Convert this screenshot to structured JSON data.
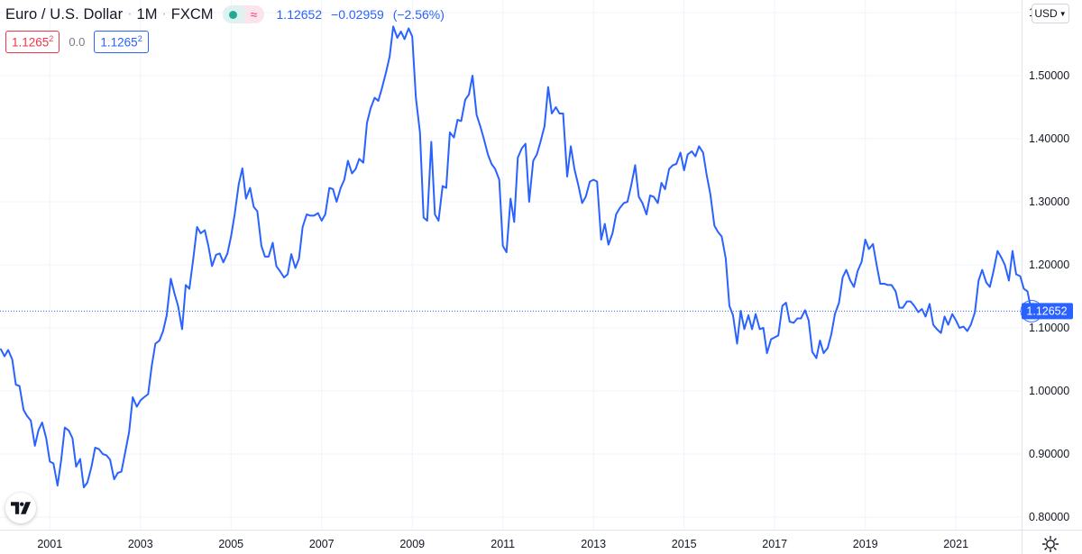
{
  "header": {
    "symbol": "Euro / U.S. Dollar",
    "separator": "·",
    "timeframe": "1M",
    "exchange": "FXCM",
    "status_icons": [
      "market-open-dot-icon",
      "data-wave-icon"
    ],
    "last": "1.12652",
    "change": "−0.02959",
    "change_pct": "(−2.56%)"
  },
  "legend": {
    "price_left": "1.1265",
    "price_left_sup": "2",
    "zero": "0.0",
    "price_right": "1.1265",
    "price_right_sup": "2"
  },
  "currency": {
    "label": "USD"
  },
  "last_price_label": "1.12652",
  "colors": {
    "line": "#2962ff",
    "down": "#f23645",
    "grid": "#f0f3fa",
    "text": "#131722"
  },
  "icons": {
    "logo": "tradingview-logo-icon",
    "settings": "gear-icon"
  },
  "chart_data": {
    "type": "line",
    "title": "Euro / U.S. Dollar",
    "xlabel": "",
    "ylabel": "",
    "x_ticks": [
      "2001",
      "2003",
      "2005",
      "2007",
      "2009",
      "2011",
      "2013",
      "2015",
      "2017",
      "2019",
      "2021"
    ],
    "y_ticks": [
      "0.80000",
      "0.90000",
      "1.00000",
      "1.10000",
      "1.20000",
      "1.30000",
      "1.40000",
      "1.50000",
      "1.60000"
    ],
    "xlim": [
      1999.9,
      2022.45
    ],
    "ylim": [
      0.78,
      1.62
    ],
    "last_value": 1.12652,
    "grid": true,
    "series": [
      {
        "points": [
          [
            1999.92,
            1.066
          ],
          [
            2000.0,
            1.055
          ],
          [
            2000.08,
            1.065
          ],
          [
            2000.17,
            1.05
          ],
          [
            2000.25,
            1.01
          ],
          [
            2000.33,
            1.008
          ],
          [
            2000.42,
            0.97
          ],
          [
            2000.5,
            0.96
          ],
          [
            2000.58,
            0.953
          ],
          [
            2000.67,
            0.913
          ],
          [
            2000.75,
            0.938
          ],
          [
            2000.83,
            0.95
          ],
          [
            2000.92,
            0.925
          ],
          [
            2001.0,
            0.888
          ],
          [
            2001.08,
            0.885
          ],
          [
            2001.17,
            0.85
          ],
          [
            2001.25,
            0.89
          ],
          [
            2001.33,
            0.942
          ],
          [
            2001.42,
            0.937
          ],
          [
            2001.5,
            0.925
          ],
          [
            2001.58,
            0.88
          ],
          [
            2001.67,
            0.892
          ],
          [
            2001.75,
            0.847
          ],
          [
            2001.83,
            0.855
          ],
          [
            2001.92,
            0.88
          ],
          [
            2002.0,
            0.91
          ],
          [
            2002.08,
            0.908
          ],
          [
            2002.17,
            0.9
          ],
          [
            2002.25,
            0.898
          ],
          [
            2002.33,
            0.891
          ],
          [
            2002.42,
            0.86
          ],
          [
            2002.5,
            0.87
          ],
          [
            2002.58,
            0.872
          ],
          [
            2002.67,
            0.905
          ],
          [
            2002.75,
            0.935
          ],
          [
            2002.83,
            0.99
          ],
          [
            2002.92,
            0.975
          ],
          [
            2003.0,
            0.985
          ],
          [
            2003.08,
            0.99
          ],
          [
            2003.17,
            0.995
          ],
          [
            2003.25,
            1.04
          ],
          [
            2003.33,
            1.075
          ],
          [
            2003.42,
            1.08
          ],
          [
            2003.5,
            1.095
          ],
          [
            2003.58,
            1.12
          ],
          [
            2003.67,
            1.178
          ],
          [
            2003.75,
            1.155
          ],
          [
            2003.83,
            1.135
          ],
          [
            2003.92,
            1.098
          ],
          [
            2004.0,
            1.168
          ],
          [
            2004.08,
            1.162
          ],
          [
            2004.17,
            1.212
          ],
          [
            2004.25,
            1.26
          ],
          [
            2004.33,
            1.25
          ],
          [
            2004.42,
            1.255
          ],
          [
            2004.5,
            1.23
          ],
          [
            2004.58,
            1.198
          ],
          [
            2004.67,
            1.216
          ],
          [
            2004.75,
            1.218
          ],
          [
            2004.83,
            1.204
          ],
          [
            2004.92,
            1.218
          ],
          [
            2005.0,
            1.245
          ],
          [
            2005.08,
            1.28
          ],
          [
            2005.17,
            1.328
          ],
          [
            2005.25,
            1.353
          ],
          [
            2005.33,
            1.305
          ],
          [
            2005.42,
            1.322
          ],
          [
            2005.5,
            1.292
          ],
          [
            2005.58,
            1.285
          ],
          [
            2005.67,
            1.23
          ],
          [
            2005.75,
            1.213
          ],
          [
            2005.83,
            1.213
          ],
          [
            2005.92,
            1.235
          ],
          [
            2006.0,
            1.198
          ],
          [
            2006.08,
            1.19
          ],
          [
            2006.17,
            1.18
          ],
          [
            2006.25,
            1.185
          ],
          [
            2006.33,
            1.217
          ],
          [
            2006.42,
            1.195
          ],
          [
            2006.5,
            1.21
          ],
          [
            2006.58,
            1.26
          ],
          [
            2006.67,
            1.28
          ],
          [
            2006.75,
            1.278
          ],
          [
            2006.83,
            1.278
          ],
          [
            2006.92,
            1.282
          ],
          [
            2007.0,
            1.27
          ],
          [
            2007.08,
            1.28
          ],
          [
            2007.17,
            1.322
          ],
          [
            2007.25,
            1.32
          ],
          [
            2007.33,
            1.3
          ],
          [
            2007.42,
            1.322
          ],
          [
            2007.5,
            1.335
          ],
          [
            2007.58,
            1.365
          ],
          [
            2007.67,
            1.345
          ],
          [
            2007.75,
            1.352
          ],
          [
            2007.83,
            1.368
          ],
          [
            2007.92,
            1.362
          ],
          [
            2008.0,
            1.425
          ],
          [
            2008.08,
            1.448
          ],
          [
            2008.17,
            1.465
          ],
          [
            2008.25,
            1.46
          ],
          [
            2008.33,
            1.48
          ],
          [
            2008.42,
            1.505
          ],
          [
            2008.5,
            1.53
          ],
          [
            2008.58,
            1.578
          ],
          [
            2008.67,
            1.56
          ],
          [
            2008.75,
            1.57
          ],
          [
            2008.83,
            1.558
          ],
          [
            2008.92,
            1.575
          ],
          [
            2009.0,
            1.562
          ],
          [
            2009.08,
            1.465
          ],
          [
            2009.17,
            1.41
          ],
          [
            2009.25,
            1.275
          ],
          [
            2009.33,
            1.27
          ],
          [
            2009.42,
            1.395
          ],
          [
            2009.5,
            1.28
          ],
          [
            2009.58,
            1.27
          ],
          [
            2009.67,
            1.325
          ],
          [
            2009.75,
            1.322
          ],
          [
            2009.83,
            1.41
          ],
          [
            2009.92,
            1.402
          ],
          [
            2010.0,
            1.43
          ],
          [
            2010.08,
            1.428
          ],
          [
            2010.17,
            1.462
          ],
          [
            2010.25,
            1.47
          ],
          [
            2010.33,
            1.5
          ],
          [
            2010.42,
            1.438
          ],
          [
            2010.5,
            1.42
          ],
          [
            2010.58,
            1.4
          ],
          [
            2010.67,
            1.375
          ],
          [
            2010.75,
            1.36
          ],
          [
            2010.83,
            1.352
          ],
          [
            2010.92,
            1.335
          ],
          [
            2011.0,
            1.23
          ],
          [
            2011.08,
            1.22
          ],
          [
            2011.17,
            1.305
          ],
          [
            2011.25,
            1.268
          ],
          [
            2011.33,
            1.37
          ],
          [
            2011.42,
            1.385
          ],
          [
            2011.5,
            1.392
          ],
          [
            2011.58,
            1.3
          ],
          [
            2011.67,
            1.365
          ],
          [
            2011.75,
            1.375
          ],
          [
            2011.83,
            1.395
          ],
          [
            2011.92,
            1.42
          ],
          [
            2012.0,
            1.482
          ],
          [
            2012.08,
            1.44
          ],
          [
            2012.17,
            1.45
          ],
          [
            2012.25,
            1.44
          ],
          [
            2012.33,
            1.44
          ],
          [
            2012.42,
            1.34
          ],
          [
            2012.5,
            1.388
          ],
          [
            2012.58,
            1.352
          ],
          [
            2012.67,
            1.325
          ],
          [
            2012.75,
            1.298
          ],
          [
            2012.83,
            1.308
          ],
          [
            2012.92,
            1.332
          ],
          [
            2013.0,
            1.335
          ],
          [
            2013.08,
            1.332
          ],
          [
            2013.17,
            1.24
          ],
          [
            2013.25,
            1.265
          ],
          [
            2013.33,
            1.232
          ],
          [
            2013.42,
            1.25
          ],
          [
            2013.5,
            1.28
          ],
          [
            2013.58,
            1.29
          ],
          [
            2013.67,
            1.298
          ],
          [
            2013.75,
            1.3
          ],
          [
            2013.83,
            1.325
          ],
          [
            2013.92,
            1.358
          ],
          [
            2014.0,
            1.308
          ],
          [
            2014.08,
            1.298
          ],
          [
            2014.17,
            1.28
          ],
          [
            2014.25,
            1.31
          ],
          [
            2014.33,
            1.308
          ],
          [
            2014.42,
            1.298
          ],
          [
            2014.5,
            1.33
          ],
          [
            2014.58,
            1.32
          ],
          [
            2014.67,
            1.352
          ],
          [
            2014.75,
            1.358
          ],
          [
            2014.83,
            1.36
          ],
          [
            2014.92,
            1.378
          ],
          [
            2015.0,
            1.35
          ],
          [
            2015.08,
            1.375
          ],
          [
            2015.17,
            1.38
          ],
          [
            2015.25,
            1.372
          ],
          [
            2015.33,
            1.388
          ],
          [
            2015.42,
            1.378
          ],
          [
            2015.5,
            1.342
          ],
          [
            2015.58,
            1.312
          ],
          [
            2015.67,
            1.262
          ],
          [
            2015.75,
            1.252
          ],
          [
            2015.83,
            1.245
          ],
          [
            2015.92,
            1.21
          ],
          [
            2016.0,
            1.135
          ],
          [
            2016.08,
            1.12
          ],
          [
            2016.17,
            1.075
          ],
          [
            2016.25,
            1.127
          ],
          [
            2016.33,
            1.098
          ],
          [
            2016.42,
            1.12
          ],
          [
            2016.5,
            1.098
          ],
          [
            2016.58,
            1.122
          ],
          [
            2016.67,
            1.098
          ],
          [
            2016.75,
            1.1
          ],
          [
            2016.83,
            1.06
          ],
          [
            2016.92,
            1.082
          ],
          [
            2017.0,
            1.085
          ],
          [
            2017.08,
            1.088
          ],
          [
            2017.17,
            1.135
          ],
          [
            2017.25,
            1.14
          ],
          [
            2017.33,
            1.11
          ],
          [
            2017.42,
            1.108
          ],
          [
            2017.5,
            1.115
          ],
          [
            2017.58,
            1.115
          ],
          [
            2017.67,
            1.128
          ],
          [
            2017.75,
            1.112
          ],
          [
            2017.83,
            1.062
          ],
          [
            2017.92,
            1.052
          ],
          [
            2018.0,
            1.08
          ],
          [
            2018.08,
            1.06
          ],
          [
            2018.17,
            1.068
          ],
          [
            2018.25,
            1.09
          ],
          [
            2018.33,
            1.122
          ],
          [
            2018.42,
            1.14
          ],
          [
            2018.5,
            1.18
          ],
          [
            2018.58,
            1.192
          ],
          [
            2018.67,
            1.175
          ],
          [
            2018.75,
            1.165
          ],
          [
            2018.83,
            1.19
          ],
          [
            2018.92,
            1.205
          ],
          [
            2019.0,
            1.24
          ],
          [
            2019.08,
            1.225
          ],
          [
            2019.17,
            1.233
          ],
          [
            2019.25,
            1.2
          ],
          [
            2019.33,
            1.17
          ],
          [
            2019.42,
            1.17
          ],
          [
            2019.5,
            1.168
          ],
          [
            2019.58,
            1.168
          ],
          [
            2019.67,
            1.158
          ],
          [
            2019.75,
            1.132
          ],
          [
            2019.83,
            1.132
          ],
          [
            2019.92,
            1.142
          ],
          [
            2020.0,
            1.142
          ],
          [
            2020.08,
            1.135
          ],
          [
            2020.17,
            1.125
          ],
          [
            2020.25,
            1.13
          ],
          [
            2020.33,
            1.118
          ],
          [
            2020.42,
            1.138
          ],
          [
            2020.5,
            1.105
          ],
          [
            2020.58,
            1.098
          ],
          [
            2020.67,
            1.092
          ],
          [
            2020.75,
            1.118
          ],
          [
            2020.83,
            1.105
          ],
          [
            2020.92,
            1.122
          ],
          [
            2021.0,
            1.112
          ],
          [
            2021.08,
            1.1
          ],
          [
            2021.17,
            1.102
          ],
          [
            2021.25,
            1.095
          ],
          [
            2021.33,
            1.105
          ],
          [
            2021.42,
            1.125
          ],
          [
            2021.5,
            1.175
          ],
          [
            2021.58,
            1.192
          ],
          [
            2021.67,
            1.172
          ],
          [
            2021.75,
            1.165
          ],
          [
            2021.83,
            1.19
          ],
          [
            2021.92,
            1.222
          ],
          [
            2022.0,
            1.212
          ],
          [
            2022.08,
            1.2
          ],
          [
            2022.17,
            1.175
          ],
          [
            2022.25,
            1.222
          ],
          [
            2022.33,
            1.185
          ],
          [
            2022.42,
            1.182
          ],
          [
            2022.5,
            1.162
          ],
          [
            2022.58,
            1.158
          ],
          [
            2022.67,
            1.126
          ]
        ]
      }
    ]
  }
}
